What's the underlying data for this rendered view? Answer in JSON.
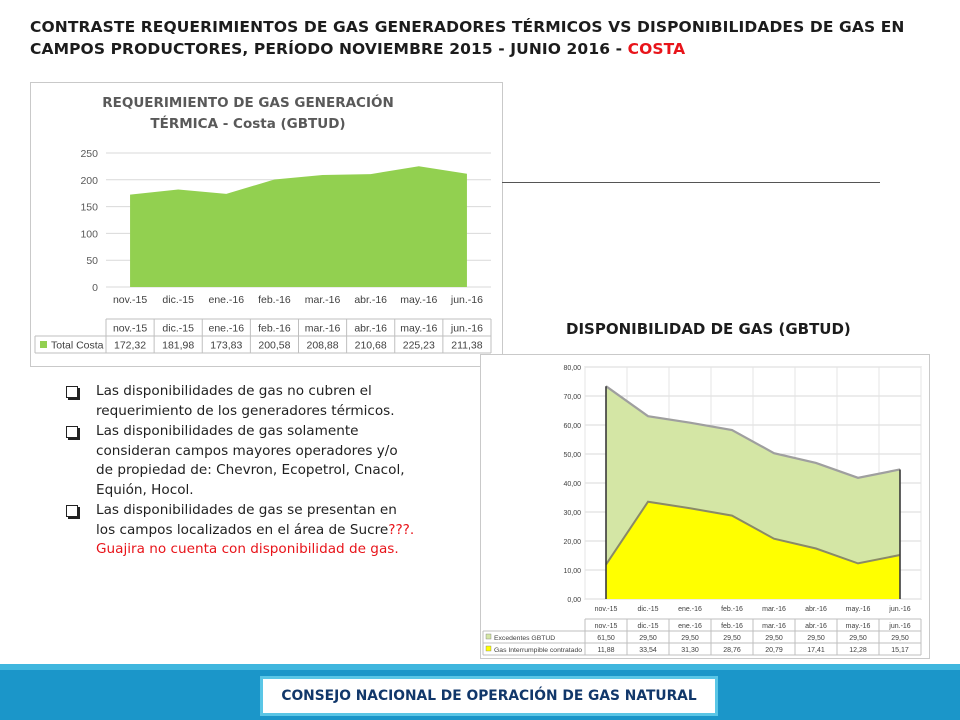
{
  "slide": {
    "title_main": "CONTRASTE REQUERIMIENTOS DE GAS GENERADORES TÉRMICOS VS DISPONIBILIDADES DE GAS EN CAMPOS PRODUCTORES, PERÍODO NOVIEMBRE 2015 - JUNIO 2016 - ",
    "title_highlight": "COSTA",
    "highlight_color": "#e8141a",
    "section_title": "DISPONIBILIDAD DE GAS (GBTUD)",
    "notes": [
      {
        "text": "Las disponibilidades de gas no cubren el requerimiento de los generadores térmicos.",
        "text_red": ""
      },
      {
        "text": "Las disponibilidades de gas solamente consideran campos mayores operadores y/o de propiedad de: Chevron, Ecopetrol, Cnacol, Equión, Hocol.",
        "text_red": ""
      },
      {
        "text": "Las disponibilidades de gas se presentan en los campos localizados en el área de Sucre",
        "text_red": "???. Guajira no cuenta con disponibilidad de gas."
      }
    ],
    "bullet_icon": "checkbox-square-icon",
    "footer": "CONSEJO NACIONAL DE OPERACIÓN DE GAS NATURAL"
  },
  "chart_data": [
    {
      "type": "area",
      "title": "REQUERIMIENTO DE GAS GENERACIÓN TÉRMICA - Costa (GBTUD)",
      "categories": [
        "nov.-15",
        "dic.-15",
        "ene.-16",
        "feb.-16",
        "mar.-16",
        "abr.-16",
        "may.-16",
        "jun.-16"
      ],
      "series": [
        {
          "name": "Total Costa",
          "color": "#92d050",
          "values": [
            172.32,
            181.98,
            173.83,
            200.58,
            208.88,
            210.68,
            225.23,
            211.38
          ],
          "labels": [
            "172,32",
            "181,98",
            "173,83",
            "200,58",
            "208,88",
            "210,68",
            "225,23",
            "211,38"
          ]
        }
      ],
      "ylim": [
        0,
        250
      ],
      "yticks": [
        0,
        50,
        100,
        150,
        200,
        250
      ],
      "ytick_labels": [
        "0",
        "50",
        "100",
        "150",
        "200",
        "250"
      ],
      "grid": true,
      "data_table": true
    },
    {
      "type": "area",
      "stacked": true,
      "categories": [
        "nov.-15",
        "dic.-15",
        "ene.-16",
        "feb.-16",
        "mar.-16",
        "abr.-16",
        "may.-16",
        "jun.-16"
      ],
      "series": [
        {
          "name": "Gas Interrumpible contratado",
          "color": "#ffff00",
          "values": [
            11.88,
            33.54,
            31.3,
            28.76,
            20.79,
            17.41,
            12.28,
            15.17
          ],
          "labels": [
            "11,88",
            "33,54",
            "31,30",
            "28,76",
            "20,79",
            "17,41",
            "12,28",
            "15,17"
          ]
        },
        {
          "name": "Excedentes GBTUD",
          "color": "#d4e6a5",
          "values": [
            61.5,
            29.5,
            29.5,
            29.5,
            29.5,
            29.5,
            29.5,
            29.5
          ],
          "labels": [
            "61,50",
            "29,50",
            "29,50",
            "29,50",
            "29,50",
            "29,50",
            "29,50",
            "29,50"
          ]
        }
      ],
      "ylim": [
        0,
        80
      ],
      "yticks": [
        0,
        10,
        20,
        30,
        40,
        50,
        60,
        70,
        80
      ],
      "ytick_labels": [
        "0,00",
        "10,00",
        "20,00",
        "30,00",
        "40,00",
        "50,00",
        "60,00",
        "70,00",
        "80,00"
      ],
      "grid": true,
      "data_table": true
    }
  ]
}
